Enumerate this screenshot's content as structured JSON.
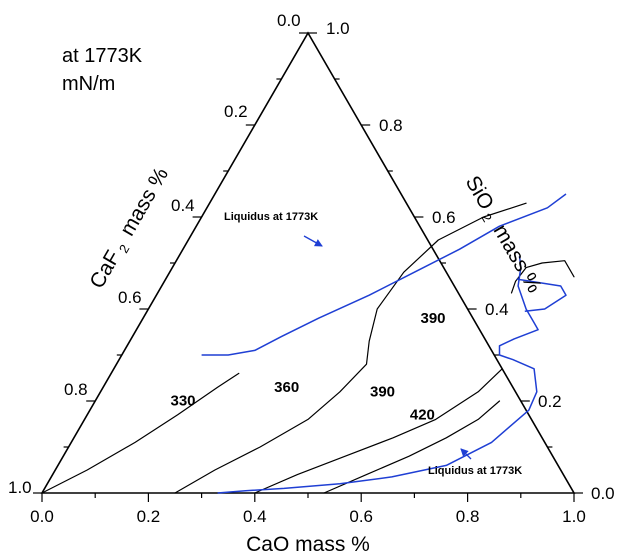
{
  "chart_data": {
    "type": "ternary",
    "condition": [
      "at 1773K",
      "mN/m"
    ],
    "axes": {
      "CaO": {
        "title": "CaO mass %",
        "ticks": [
          "0.0",
          "0.2",
          "0.4",
          "0.6",
          "0.8",
          "1.0"
        ]
      },
      "SiO2": {
        "title_main": "SiO",
        "title_sub": "2",
        "title_rest": " mass %",
        "ticks": [
          "0.0",
          "0.2",
          "0.4",
          "0.6",
          "0.8",
          "1.0"
        ]
      },
      "CaF2": {
        "title_main": "CaF",
        "title_sub": "2",
        "title_rest": " mass %",
        "ticks": [
          "0.0",
          "0.2",
          "0.4",
          "0.6",
          "0.8",
          "1.0"
        ]
      }
    },
    "colors": {
      "axis": "#000000",
      "isoline": "#000000",
      "liquidus": "#1f3fd4"
    },
    "isolines": [
      {
        "label": "330",
        "points": [
          [
            0.0,
            0.0
          ],
          [
            0.06,
            0.05
          ],
          [
            0.12,
            0.11
          ],
          [
            0.17,
            0.17
          ],
          [
            0.215,
            0.23
          ],
          [
            0.24,
            0.26
          ]
        ]
      },
      {
        "label": "360",
        "points": [
          [
            0.25,
            0.0
          ],
          [
            0.3,
            0.05
          ],
          [
            0.36,
            0.1
          ],
          [
            0.42,
            0.16
          ],
          [
            0.45,
            0.22
          ],
          [
            0.47,
            0.28
          ],
          [
            0.45,
            0.33
          ],
          [
            0.43,
            0.4
          ],
          [
            0.44,
            0.48
          ],
          [
            0.47,
            0.55
          ],
          [
            0.53,
            0.6
          ],
          [
            0.595,
            0.63
          ]
        ]
      },
      {
        "label": "390",
        "points": [
          [
            0.4,
            0.0
          ],
          [
            0.46,
            0.04
          ],
          [
            0.53,
            0.08
          ],
          [
            0.6,
            0.12
          ],
          [
            0.66,
            0.16
          ],
          [
            0.71,
            0.22
          ],
          [
            0.73,
            0.27
          ]
        ]
      },
      {
        "label": "420",
        "points": [
          [
            0.53,
            0.0
          ],
          [
            0.59,
            0.04
          ],
          [
            0.65,
            0.08
          ],
          [
            0.7,
            0.12
          ],
          [
            0.74,
            0.16
          ],
          [
            0.76,
            0.2
          ]
        ]
      },
      {
        "label": "390",
        "points": [
          [
            0.665,
            0.435
          ],
          [
            0.66,
            0.46
          ],
          [
            0.665,
            0.49
          ],
          [
            0.69,
            0.5
          ],
          [
            0.73,
            0.505
          ],
          [
            0.765,
            0.47
          ]
        ]
      }
    ],
    "isoline_labels": [
      {
        "text": "330",
        "cao": 0.17,
        "sio2": 0.19
      },
      {
        "text": "360",
        "cao": 0.35,
        "sio2": 0.22
      },
      {
        "text": "390",
        "cao": 0.535,
        "sio2": 0.21
      },
      {
        "text": "420",
        "cao": 0.635,
        "sio2": 0.16
      },
      {
        "text": "390",
        "cao": 0.55,
        "sio2": 0.37
      }
    ],
    "liquidus": {
      "label": "Liquidus at 1773K",
      "upper": [
        [
          0.15,
          0.3
        ],
        [
          0.2,
          0.3
        ],
        [
          0.245,
          0.31
        ],
        [
          0.28,
          0.34
        ],
        [
          0.33,
          0.38
        ],
        [
          0.4,
          0.43
        ],
        [
          0.46,
          0.48
        ],
        [
          0.52,
          0.53
        ],
        [
          0.57,
          0.58
        ],
        [
          0.64,
          0.62
        ],
        [
          0.66,
          0.65
        ]
      ],
      "lower": [
        [
          0.64,
          0.515
        ],
        [
          0.655,
          0.49
        ],
        [
          0.67,
          0.45
        ],
        [
          0.71,
          0.4
        ],
        [
          0.74,
          0.37
        ],
        [
          0.755,
          0.355
        ],
        [
          0.72,
          0.335
        ],
        [
          0.7,
          0.32
        ],
        [
          0.71,
          0.3
        ],
        [
          0.74,
          0.29
        ],
        [
          0.79,
          0.27
        ],
        [
          0.82,
          0.22
        ],
        [
          0.825,
          0.18
        ],
        [
          0.79,
          0.11
        ],
        [
          0.73,
          0.06
        ],
        [
          0.64,
          0.035
        ],
        [
          0.55,
          0.02
        ],
        [
          0.45,
          0.01
        ],
        [
          0.38,
          0.005
        ],
        [
          0.33,
          0.0
        ]
      ],
      "bridge": [
        [
          0.66,
          0.465
        ],
        [
          0.75,
          0.45
        ],
        [
          0.77,
          0.43
        ],
        [
          0.745,
          0.4
        ],
        [
          0.71,
          0.395
        ]
      ]
    }
  }
}
